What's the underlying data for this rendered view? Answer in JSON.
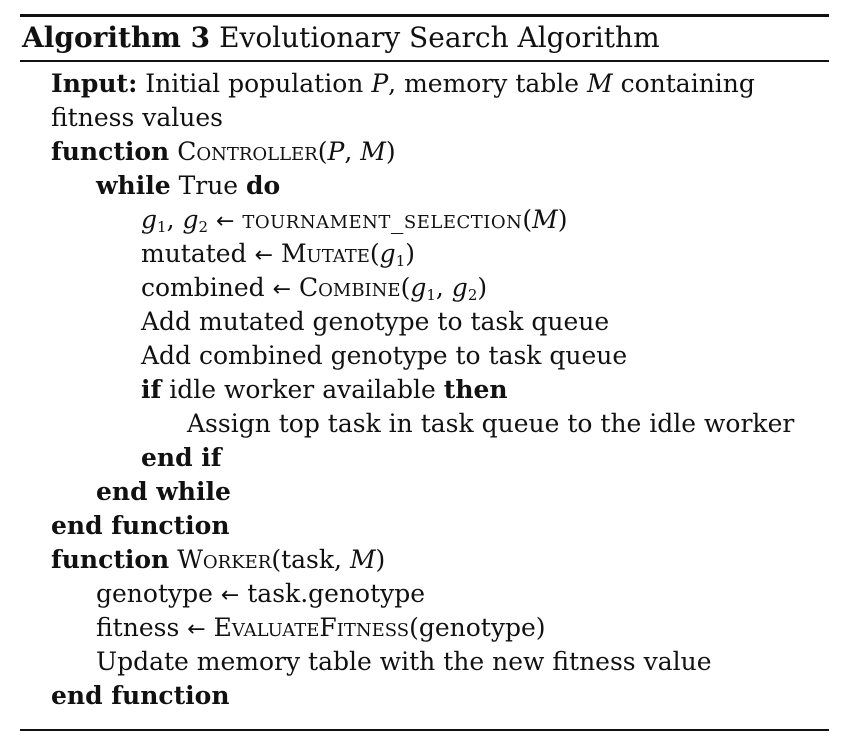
{
  "caption": {
    "label": "Algorithm 3",
    "title": "Evolutionary Search Algorithm"
  },
  "input": {
    "keyword": "Input:",
    "text_line1": "Initial population",
    "var_p": "P",
    "text_mid": ", memory table",
    "var_m": "M",
    "text_end": "containing",
    "text_line2": "fitness values"
  },
  "controller": {
    "keyword": "function",
    "name": "Controller",
    "args_open": "(",
    "arg1": "P",
    "arg_sep": ",",
    "arg2": "M",
    "args_close": ")",
    "while_kw": "while",
    "while_cond": "True",
    "do_kw": "do",
    "sel_g1": "g",
    "sel_sub1": "1",
    "sel_comma": ",",
    "sel_g2": "g",
    "sel_sub2": "2",
    "arrow": "←",
    "sel_func": "tournament_selection",
    "sel_arg_open": "(",
    "sel_arg": "M",
    "sel_arg_close": ")",
    "mut_var": "mutated",
    "mut_func": "Mutate",
    "mut_arg_open": "(",
    "mut_arg": "g",
    "mut_sub": "1",
    "mut_arg_close": ")",
    "comb_var": "combined",
    "comb_func": "Combine",
    "comb_arg_open": "(",
    "comb_arg1": "g",
    "comb_sub1": "1",
    "comb_sep": ",",
    "comb_arg2": "g",
    "comb_sub2": "2",
    "comb_arg_close": ")",
    "add_mutated": "Add mutated genotype to task queue",
    "add_combined": "Add combined genotype to task queue",
    "if_kw": "if",
    "if_cond": "idle worker available",
    "then_kw": "then",
    "assign": "Assign top task in task queue to the idle worker",
    "end_if": "end if",
    "end_while": "end while",
    "end_function": "end function"
  },
  "worker": {
    "keyword": "function",
    "name": "Worker",
    "args_open": "(task,",
    "arg2": "M",
    "args_close": ")",
    "geno_var": "genotype",
    "geno_val": "task.genotype",
    "fit_var": "fitness",
    "fit_func": "EvaluateFitness",
    "fit_arg": "(genotype)",
    "update": "Update memory table with the new fitness value",
    "end_function": "end function"
  }
}
